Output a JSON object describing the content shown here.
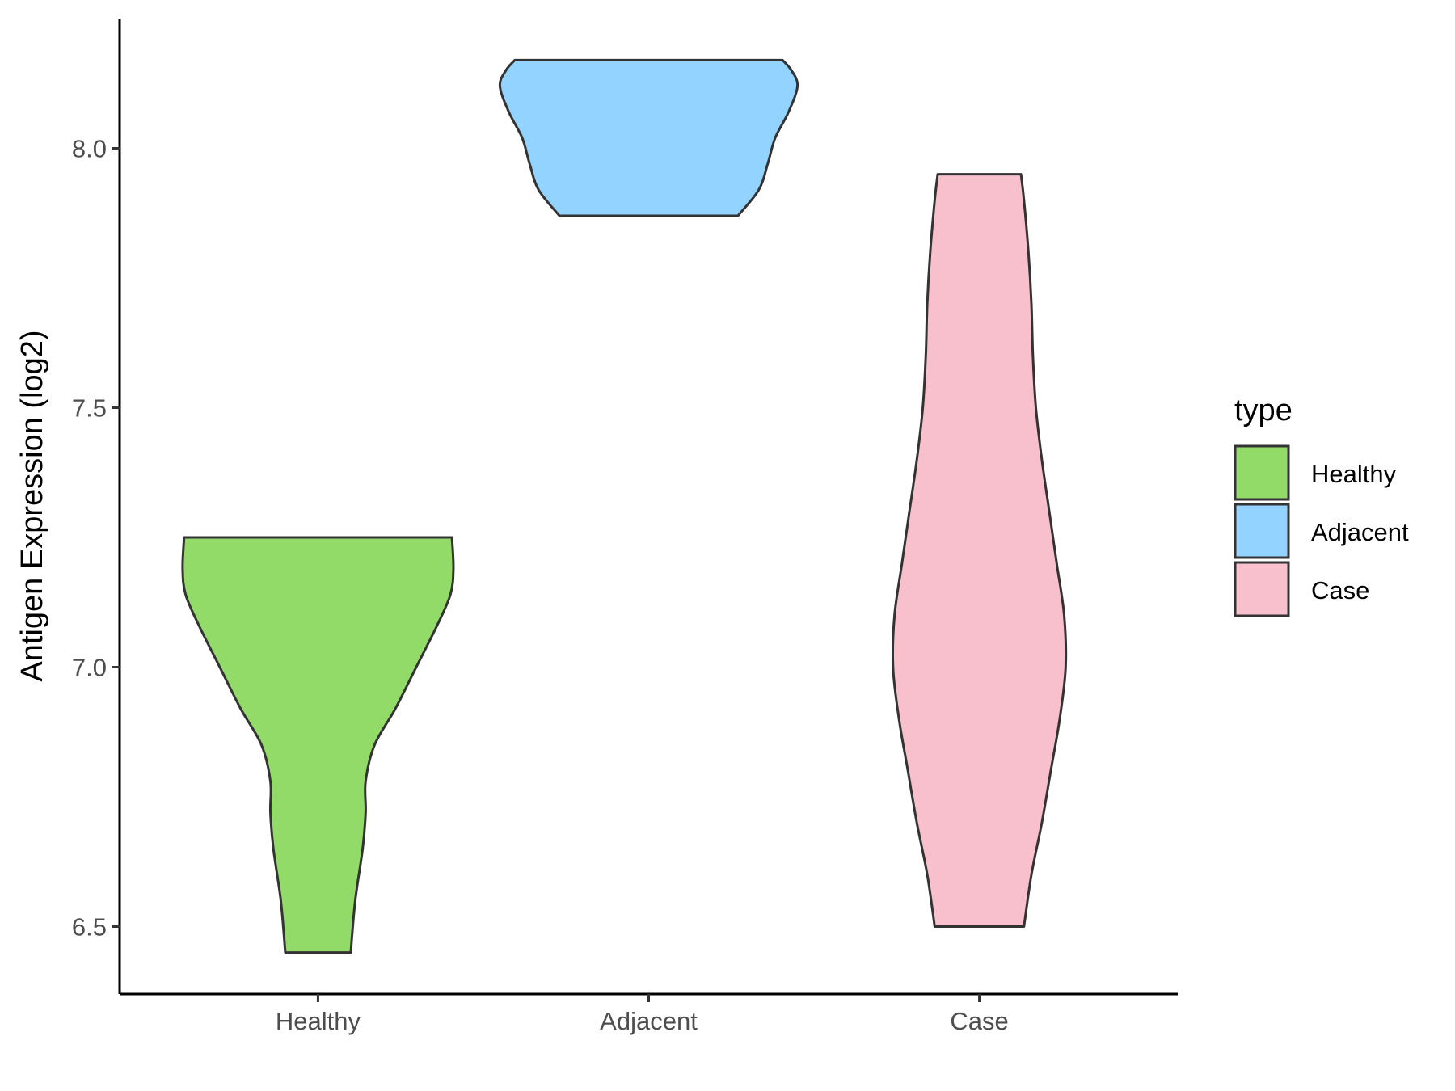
{
  "chart_data": {
    "type": "violin",
    "ylabel": "Antigen Expression (log2)",
    "xlabel": "",
    "ylim": [
      6.37,
      8.25
    ],
    "yticks": [
      6.5,
      7.0,
      7.5,
      8.0
    ],
    "ytick_labels": [
      "6.5",
      "7.0",
      "7.5",
      "8.0"
    ],
    "categories": [
      "Healthy",
      "Adjacent",
      "Case"
    ],
    "grid": false,
    "legend": {
      "title": "type",
      "placement": "right",
      "entries": [
        "Healthy",
        "Adjacent",
        "Case"
      ]
    },
    "series": [
      {
        "name": "Healthy",
        "color": "#93DB69",
        "min": 6.45,
        "max": 7.25,
        "profile": [
          [
            6.45,
            0.22
          ],
          [
            6.55,
            0.25
          ],
          [
            6.65,
            0.3
          ],
          [
            6.72,
            0.32
          ],
          [
            6.78,
            0.32
          ],
          [
            6.85,
            0.38
          ],
          [
            6.92,
            0.52
          ],
          [
            7.0,
            0.66
          ],
          [
            7.08,
            0.8
          ],
          [
            7.14,
            0.89
          ],
          [
            7.19,
            0.91
          ],
          [
            7.25,
            0.9
          ]
        ]
      },
      {
        "name": "Adjacent",
        "color": "#93D3FF",
        "min": 7.87,
        "max": 8.17,
        "profile": [
          [
            7.87,
            0.6
          ],
          [
            7.92,
            0.74
          ],
          [
            7.97,
            0.8
          ],
          [
            8.02,
            0.85
          ],
          [
            8.07,
            0.94
          ],
          [
            8.12,
            1.0
          ],
          [
            8.15,
            0.96
          ],
          [
            8.17,
            0.9
          ]
        ]
      },
      {
        "name": "Case",
        "color": "#F7C0CC",
        "min": 6.5,
        "max": 7.95,
        "profile": [
          [
            6.5,
            0.3
          ],
          [
            6.6,
            0.35
          ],
          [
            6.7,
            0.42
          ],
          [
            6.8,
            0.48
          ],
          [
            6.9,
            0.54
          ],
          [
            7.0,
            0.58
          ],
          [
            7.1,
            0.57
          ],
          [
            7.2,
            0.52
          ],
          [
            7.3,
            0.47
          ],
          [
            7.4,
            0.42
          ],
          [
            7.5,
            0.38
          ],
          [
            7.6,
            0.36
          ],
          [
            7.7,
            0.35
          ],
          [
            7.8,
            0.33
          ],
          [
            7.9,
            0.3
          ],
          [
            7.95,
            0.28
          ]
        ]
      }
    ]
  }
}
